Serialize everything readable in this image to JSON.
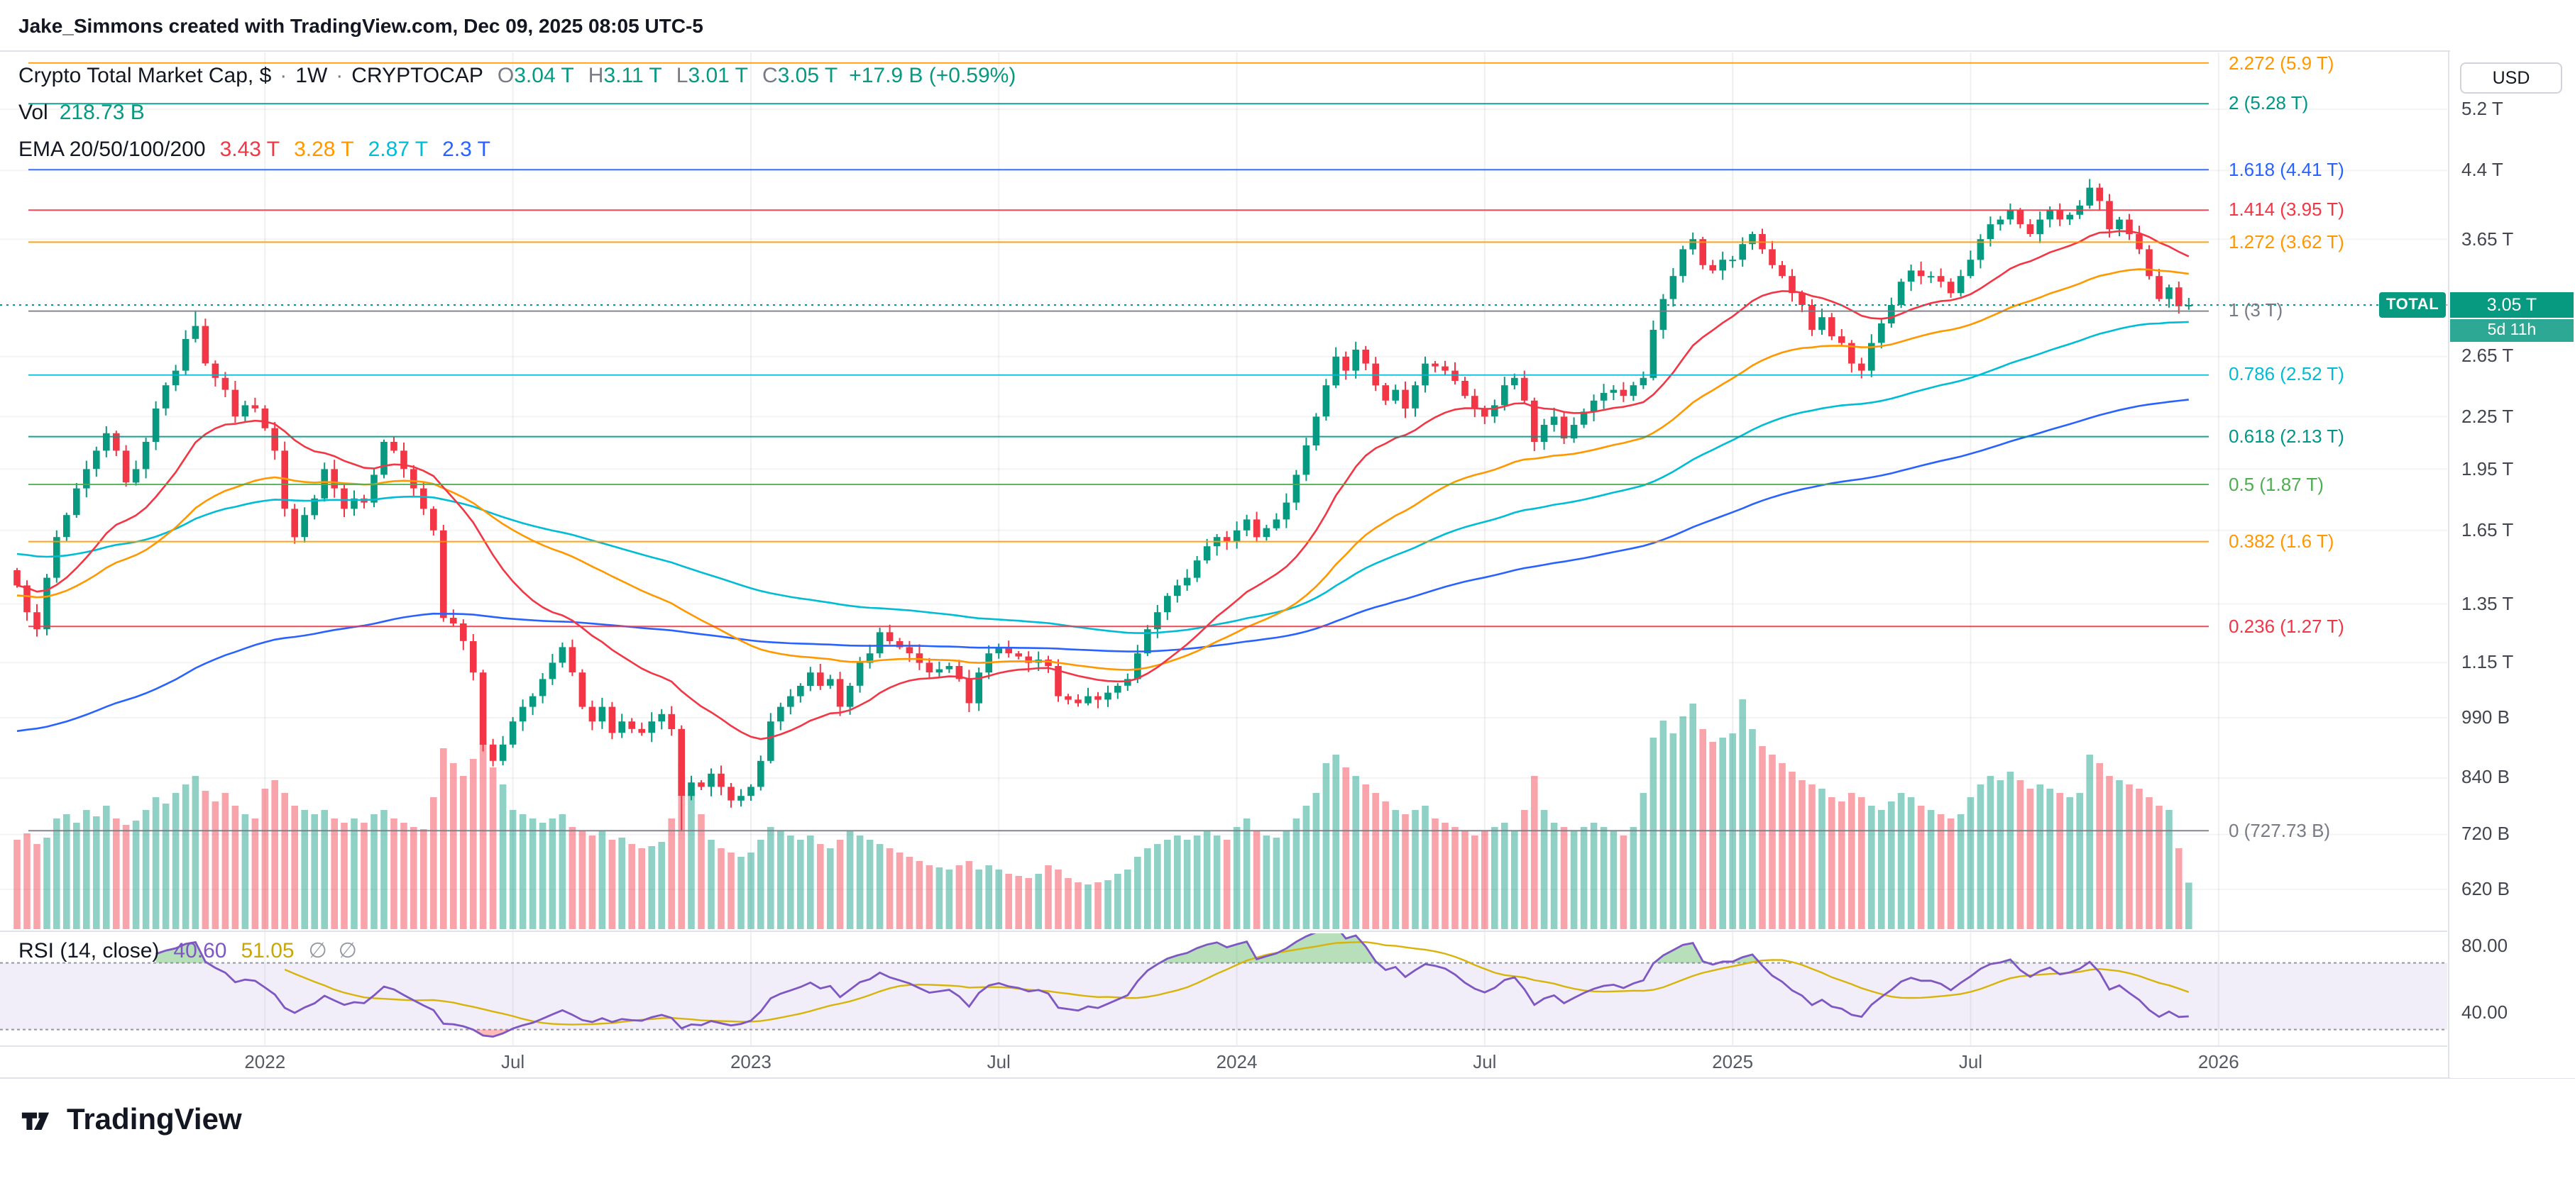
{
  "attribution": "Jake_Simmons created with TradingView.com, Dec 09, 2025 08:05 UTC-5",
  "header": {
    "title": "Crypto Total Market Cap, $",
    "separator": "·",
    "interval": "1W",
    "exchange": "CRYPTOCAP",
    "ohlc": {
      "o_label": "O",
      "o": "3.04 T",
      "h_label": "H",
      "h": "3.11 T",
      "l_label": "L",
      "l": "3.01 T",
      "c_label": "C",
      "c": "3.05 T",
      "change": "+17.9 B (+0.59%)"
    }
  },
  "volume_row": {
    "label": "Vol",
    "value": "218.73 B"
  },
  "ema_row": {
    "label": "EMA 20/50/100/200",
    "values": [
      {
        "period": 20,
        "text": "3.43 T",
        "color": "#f23645"
      },
      {
        "period": 50,
        "text": "3.28 T",
        "color": "#ff9800"
      },
      {
        "period": 100,
        "text": "2.87 T",
        "color": "#00bcd4"
      },
      {
        "period": 200,
        "text": "2.3 T",
        "color": "#2962ff"
      }
    ]
  },
  "rsi_row": {
    "label": "RSI (14, close)",
    "value": "40.60",
    "ma": "51.05",
    "empty": "∅"
  },
  "badge": {
    "symbol": "TOTAL",
    "price": "3.05 T",
    "countdown": "5d 11h",
    "color": "#089981"
  },
  "price_axis": {
    "currency": "USD",
    "ticks": [
      {
        "label": "5.2 T",
        "v": 5.2
      },
      {
        "label": "4.4 T",
        "v": 4.4
      },
      {
        "label": "3.65 T",
        "v": 3.65
      },
      {
        "label": "2.65 T",
        "v": 2.65
      },
      {
        "label": "2.25 T",
        "v": 2.25
      },
      {
        "label": "1.95 T",
        "v": 1.95
      },
      {
        "label": "1.65 T",
        "v": 1.65
      },
      {
        "label": "1.35 T",
        "v": 1.35
      },
      {
        "label": "1.15 T",
        "v": 1.15
      },
      {
        "label": "990 B",
        "v": 0.99
      },
      {
        "label": "840 B",
        "v": 0.84
      },
      {
        "label": "720 B",
        "v": 0.72
      },
      {
        "label": "620 B",
        "v": 0.62
      }
    ]
  },
  "time_axis": {
    "ticks": [
      {
        "label": "2022",
        "i": 25
      },
      {
        "label": "Jul",
        "i": 50
      },
      {
        "label": "2023",
        "i": 74
      },
      {
        "label": "Jul",
        "i": 99
      },
      {
        "label": "2024",
        "i": 123
      },
      {
        "label": "Jul",
        "i": 148
      },
      {
        "label": "2025",
        "i": 173
      },
      {
        "label": "Jul",
        "i": 197
      },
      {
        "label": "2026",
        "i": 222
      }
    ]
  },
  "colors": {
    "up": "#089981",
    "down": "#f23645",
    "ema20": "#f23645",
    "ema50": "#ff9800",
    "ema100": "#00bcd4",
    "ema200": "#2962ff",
    "rsi": "#7e57c2",
    "rsi_ma": "#d8b40a",
    "band": "rgba(126,87,194,0.1)",
    "accent": "#089981"
  },
  "footer": {
    "brand": "TradingView"
  },
  "chart_data": {
    "type": "candlestick",
    "title": "Crypto Total Market Cap (CRYPTOCAP:TOTAL)",
    "interval": "1W",
    "x_range": [
      "2021-07",
      "2026-01"
    ],
    "y_scale": "log",
    "y_unit": "USD trillions",
    "closes_trillions": [
      1.42,
      1.32,
      1.26,
      1.45,
      1.62,
      1.72,
      1.85,
      1.95,
      2.05,
      2.15,
      2.05,
      1.88,
      1.95,
      2.1,
      2.3,
      2.45,
      2.55,
      2.78,
      2.88,
      2.6,
      2.5,
      2.42,
      2.25,
      2.32,
      2.3,
      2.18,
      2.05,
      1.75,
      1.62,
      1.72,
      1.8,
      1.95,
      1.85,
      1.75,
      1.8,
      1.78,
      1.92,
      2.1,
      2.05,
      1.95,
      1.85,
      1.75,
      1.65,
      1.3,
      1.28,
      1.22,
      1.12,
      0.92,
      0.88,
      0.92,
      0.98,
      1.02,
      1.05,
      1.1,
      1.15,
      1.2,
      1.12,
      1.02,
      0.98,
      1.02,
      0.95,
      0.98,
      0.96,
      0.95,
      0.98,
      1.0,
      0.96,
      0.8,
      0.83,
      0.82,
      0.85,
      0.82,
      0.79,
      0.8,
      0.82,
      0.88,
      0.98,
      1.02,
      1.05,
      1.08,
      1.12,
      1.08,
      1.1,
      1.02,
      1.08,
      1.15,
      1.18,
      1.25,
      1.22,
      1.2,
      1.18,
      1.15,
      1.12,
      1.13,
      1.14,
      1.1,
      1.03,
      1.12,
      1.18,
      1.2,
      1.18,
      1.17,
      1.15,
      1.16,
      1.14,
      1.05,
      1.04,
      1.03,
      1.05,
      1.04,
      1.06,
      1.08,
      1.1,
      1.18,
      1.26,
      1.32,
      1.38,
      1.42,
      1.45,
      1.52,
      1.58,
      1.62,
      1.6,
      1.65,
      1.7,
      1.62,
      1.66,
      1.7,
      1.78,
      1.92,
      2.08,
      2.25,
      2.45,
      2.65,
      2.55,
      2.7,
      2.6,
      2.45,
      2.35,
      2.42,
      2.3,
      2.45,
      2.6,
      2.58,
      2.55,
      2.48,
      2.38,
      2.3,
      2.25,
      2.32,
      2.45,
      2.5,
      2.35,
      2.1,
      2.2,
      2.25,
      2.12,
      2.2,
      2.28,
      2.35,
      2.4,
      2.42,
      2.38,
      2.45,
      2.5,
      2.85,
      3.1,
      3.3,
      3.55,
      3.65,
      3.4,
      3.35,
      3.45,
      3.45,
      3.6,
      3.7,
      3.55,
      3.4,
      3.3,
      3.15,
      3.05,
      2.85,
      2.95,
      2.8,
      2.75,
      2.6,
      2.55,
      2.75,
      2.9,
      3.05,
      3.25,
      3.35,
      3.3,
      3.3,
      3.25,
      3.15,
      3.3,
      3.45,
      3.65,
      3.8,
      3.85,
      3.95,
      3.8,
      3.7,
      3.85,
      3.95,
      3.85,
      3.9,
      4.0,
      4.2,
      4.05,
      3.75,
      3.85,
      3.7,
      3.55,
      3.3,
      3.1,
      3.2,
      3.04,
      3.05
    ],
    "volumes_billions": [
      420,
      450,
      400,
      430,
      520,
      540,
      500,
      560,
      530,
      580,
      520,
      490,
      510,
      560,
      620,
      590,
      640,
      680,
      720,
      650,
      600,
      640,
      580,
      540,
      520,
      660,
      700,
      640,
      580,
      560,
      540,
      560,
      520,
      500,
      520,
      500,
      540,
      560,
      520,
      500,
      480,
      470,
      620,
      850,
      780,
      720,
      800,
      880,
      760,
      680,
      560,
      540,
      520,
      500,
      520,
      540,
      480,
      460,
      440,
      460,
      420,
      430,
      400,
      380,
      390,
      410,
      520,
      780,
      640,
      540,
      420,
      380,
      360,
      340,
      360,
      420,
      480,
      460,
      440,
      420,
      440,
      400,
      380,
      420,
      460,
      440,
      420,
      400,
      380,
      360,
      340,
      320,
      300,
      290,
      280,
      300,
      320,
      280,
      300,
      280,
      260,
      250,
      240,
      260,
      300,
      280,
      240,
      220,
      210,
      220,
      230,
      260,
      280,
      340,
      380,
      400,
      420,
      440,
      420,
      440,
      460,
      440,
      420,
      480,
      520,
      460,
      440,
      430,
      460,
      520,
      580,
      640,
      780,
      820,
      760,
      720,
      680,
      640,
      600,
      560,
      540,
      560,
      580,
      520,
      500,
      480,
      460,
      440,
      460,
      480,
      500,
      460,
      560,
      720,
      560,
      500,
      480,
      460,
      480,
      500,
      480,
      460,
      440,
      480,
      640,
      900,
      980,
      920,
      1000,
      1060,
      940,
      880,
      900,
      920,
      1080,
      940,
      860,
      820,
      780,
      740,
      700,
      680,
      660,
      620,
      600,
      640,
      620,
      580,
      560,
      600,
      640,
      620,
      580,
      560,
      540,
      520,
      540,
      620,
      680,
      720,
      700,
      740,
      700,
      660,
      680,
      660,
      640,
      620,
      640,
      820,
      780,
      720,
      700,
      680,
      660,
      620,
      580,
      560,
      380,
      218.73
    ],
    "first_open": 1.48,
    "last_candle": {
      "o": 3.04,
      "h": 3.11,
      "l": 3.01,
      "c": 3.05
    },
    "wick_anchors": [
      {
        "i": 18,
        "high": 3.0
      },
      {
        "i": 67,
        "low": 0.72773
      },
      {
        "i": 209,
        "high": 4.3
      }
    ],
    "ema_periods": [
      20,
      50,
      100,
      200
    ],
    "ema_seeds": [
      1.42,
      1.38,
      1.55,
      0.95
    ],
    "ema_current": [
      "3.43 T",
      "3.28 T",
      "2.87 T",
      "2.3 T"
    ],
    "volume_current_billions": 218.73,
    "rsi": {
      "period": 14,
      "ma_period": 14,
      "current": 40.6,
      "ma_current": 51.05,
      "overbought": 70,
      "oversold": 30,
      "axis_labels": [
        "80.00",
        "40.00"
      ]
    },
    "fib_retracement": {
      "high_anchor": 3.0,
      "low_anchor": 0.72773
    },
    "fib_levels": [
      {
        "label": "2.272 (5.9 T)",
        "level": 2.272,
        "value": 5.9,
        "color": "#ff9800"
      },
      {
        "label": "2 (5.28 T)",
        "level": 2.0,
        "value": 5.28,
        "color": "#009688"
      },
      {
        "label": "1.618 (4.41 T)",
        "level": 1.618,
        "value": 4.41,
        "color": "#2962ff"
      },
      {
        "label": "1.414 (3.95 T)",
        "level": 1.414,
        "value": 3.95,
        "color": "#f23645"
      },
      {
        "label": "1.272 (3.62 T)",
        "level": 1.272,
        "value": 3.62,
        "color": "#ff9800"
      },
      {
        "label": "1 (3 T)",
        "level": 1.0,
        "value": 3.0,
        "color": "#787b86"
      },
      {
        "label": "0.786 (2.52 T)",
        "level": 0.786,
        "value": 2.52,
        "color": "#00bcd4"
      },
      {
        "label": "0.618 (2.13 T)",
        "level": 0.618,
        "value": 2.13,
        "color": "#009688"
      },
      {
        "label": "0.5 (1.87 T)",
        "level": 0.5,
        "value": 1.87,
        "color": "#4caf50"
      },
      {
        "label": "0.382 (1.6 T)",
        "level": 0.382,
        "value": 1.6,
        "color": "#ff9800"
      },
      {
        "label": "0.236 (1.27 T)",
        "level": 0.236,
        "value": 1.27,
        "color": "#f23645"
      },
      {
        "label": "0 (727.73 B)",
        "level": 0.0,
        "value": 0.72773,
        "color": "#787b86"
      }
    ]
  }
}
